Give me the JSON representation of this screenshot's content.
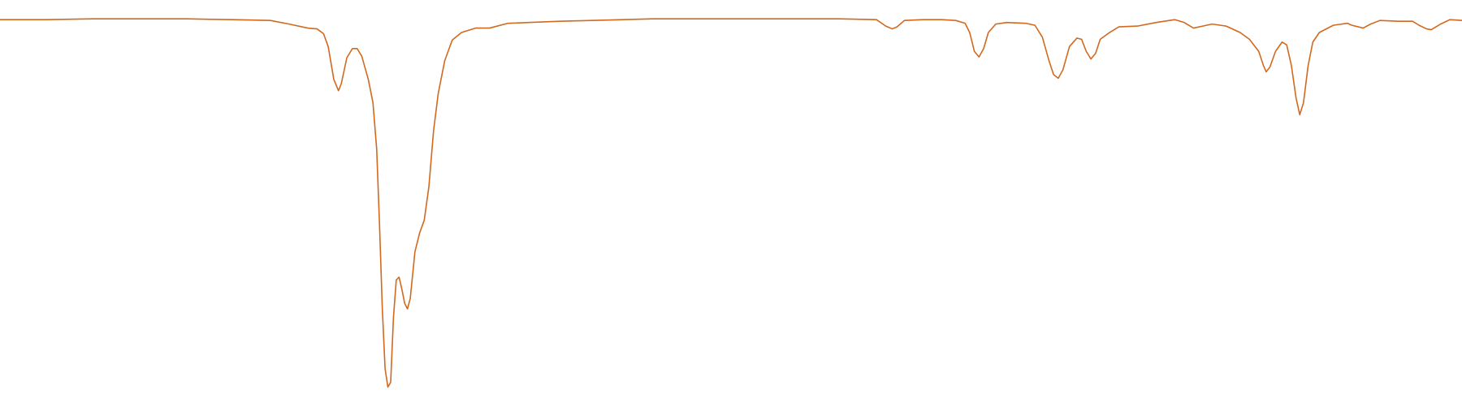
{
  "chart_data": {
    "type": "line",
    "color": "#d2691e",
    "xlim": [
      0,
      1568
    ],
    "ylim": [
      0,
      100
    ],
    "x": [
      0,
      50,
      100,
      150,
      200,
      250,
      290,
      310,
      330,
      340,
      347,
      352,
      358,
      363,
      366,
      372,
      378,
      383,
      388,
      395,
      400,
      404,
      407,
      410,
      413,
      416,
      419,
      422,
      425,
      428,
      431,
      434,
      437,
      440,
      445,
      450,
      455,
      460,
      465,
      470,
      477,
      485,
      495,
      510,
      525,
      545,
      600,
      700,
      800,
      900,
      940,
      950,
      957,
      962,
      970,
      990,
      1010,
      1025,
      1035,
      1040,
      1045,
      1050,
      1055,
      1060,
      1068,
      1080,
      1100,
      1110,
      1118,
      1125,
      1130,
      1135,
      1140,
      1147,
      1155,
      1160,
      1165,
      1170,
      1175,
      1180,
      1190,
      1200,
      1220,
      1240,
      1260,
      1270,
      1280,
      1290,
      1300,
      1315,
      1330,
      1340,
      1350,
      1355,
      1358,
      1362,
      1368,
      1375,
      1380,
      1385,
      1390,
      1394,
      1398,
      1403,
      1408,
      1415,
      1430,
      1445,
      1450,
      1462,
      1470,
      1480,
      1500,
      1515,
      1522,
      1530,
      1535,
      1545,
      1555,
      1568
    ],
    "values": [
      95.1,
      95.1,
      95.3,
      95.3,
      95.3,
      95.1,
      94.9,
      94.0,
      93.0,
      92.8,
      91.6,
      88.4,
      80.2,
      77.4,
      79.1,
      85.6,
      87.9,
      87.9,
      86.0,
      80.2,
      74.4,
      62.8,
      44.2,
      23.3,
      8.1,
      3.5,
      4.7,
      20.9,
      30.2,
      30.9,
      27.9,
      24.4,
      23.0,
      25.6,
      37.2,
      41.9,
      45.1,
      53.5,
      67.4,
      76.7,
      84.9,
      90.0,
      91.9,
      93.0,
      93.0,
      94.2,
      94.7,
      95.3,
      95.3,
      95.3,
      95.1,
      93.5,
      92.8,
      93.3,
      94.9,
      95.1,
      95.1,
      94.9,
      94.2,
      91.9,
      87.2,
      85.8,
      87.9,
      91.9,
      94.0,
      94.4,
      94.2,
      93.7,
      90.7,
      84.9,
      81.4,
      80.5,
      82.6,
      88.4,
      90.5,
      90.2,
      87.2,
      85.3,
      86.7,
      90.2,
      91.9,
      93.3,
      93.5,
      94.4,
      95.1,
      94.4,
      93.0,
      93.5,
      94.0,
      93.5,
      91.9,
      90.2,
      87.2,
      83.7,
      82.1,
      83.3,
      87.2,
      89.5,
      88.8,
      83.7,
      75.6,
      71.4,
      74.4,
      83.7,
      89.5,
      91.9,
      93.7,
      94.2,
      93.7,
      93.0,
      94.0,
      94.9,
      94.7,
      94.7,
      93.7,
      92.8,
      92.6,
      94.0,
      95.1,
      94.9
    ]
  }
}
